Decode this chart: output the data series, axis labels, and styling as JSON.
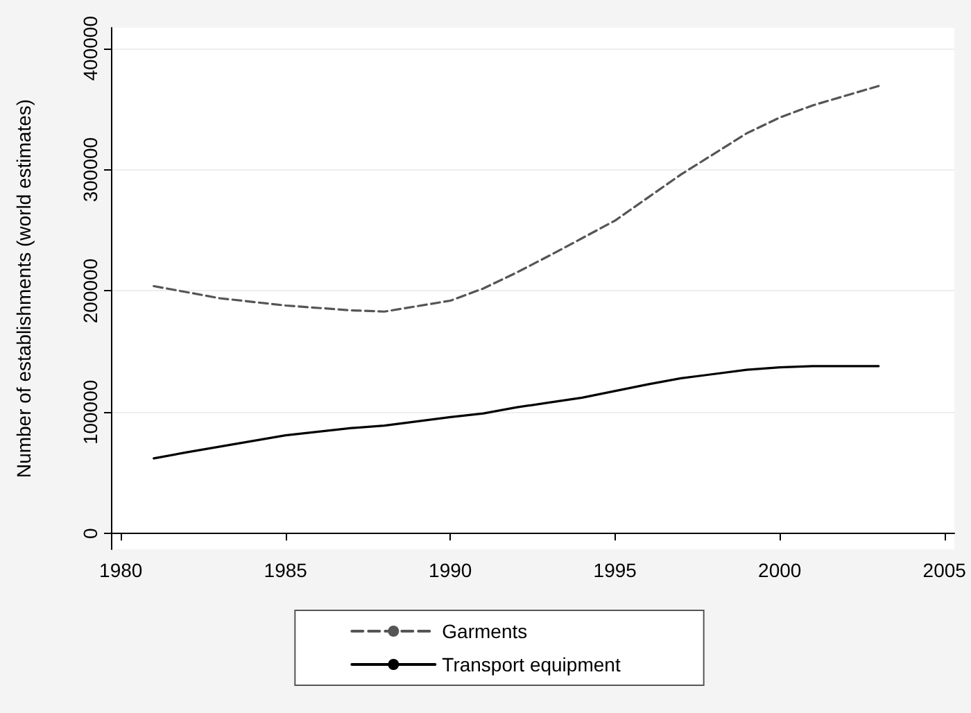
{
  "chart_data": {
    "type": "line",
    "ylabel": "Number of establishments (world estimates)",
    "xlim": [
      1979.7,
      2005.3
    ],
    "xticks": [
      1980,
      1985,
      1990,
      1995,
      2000,
      2005
    ],
    "ylim": [
      -13000,
      417000
    ],
    "yticks": [
      0,
      100000,
      200000,
      300000,
      400000
    ],
    "grid": "y",
    "legend": "bottom",
    "marker": "none",
    "series": [
      {
        "name": "Garments",
        "color": "#555555",
        "line_style": "dashed",
        "x": [
          1981,
          1982,
          1983,
          1985,
          1987,
          1988,
          1990,
          1991,
          1992,
          1993,
          1995,
          1996,
          1997,
          1999,
          2000,
          2001,
          2003
        ],
        "values": [
          204000,
          199000,
          194000,
          188000,
          184000,
          183000,
          192000,
          202000,
          215000,
          229000,
          258000,
          277000,
          296000,
          330000,
          343000,
          353000,
          369000
        ]
      },
      {
        "name": "Transport equipment",
        "color": "#000000",
        "line_style": "solid",
        "x": [
          1981,
          1982,
          1985,
          1987,
          1988,
          1990,
          1991,
          1992,
          1993,
          1994,
          1996,
          1997,
          1999,
          2000,
          2001,
          2002,
          2003
        ],
        "values": [
          62000,
          67000,
          81000,
          87000,
          89000,
          96000,
          99000,
          104000,
          108000,
          112000,
          123000,
          128000,
          135000,
          137000,
          138000,
          138000,
          138000
        ]
      }
    ]
  }
}
